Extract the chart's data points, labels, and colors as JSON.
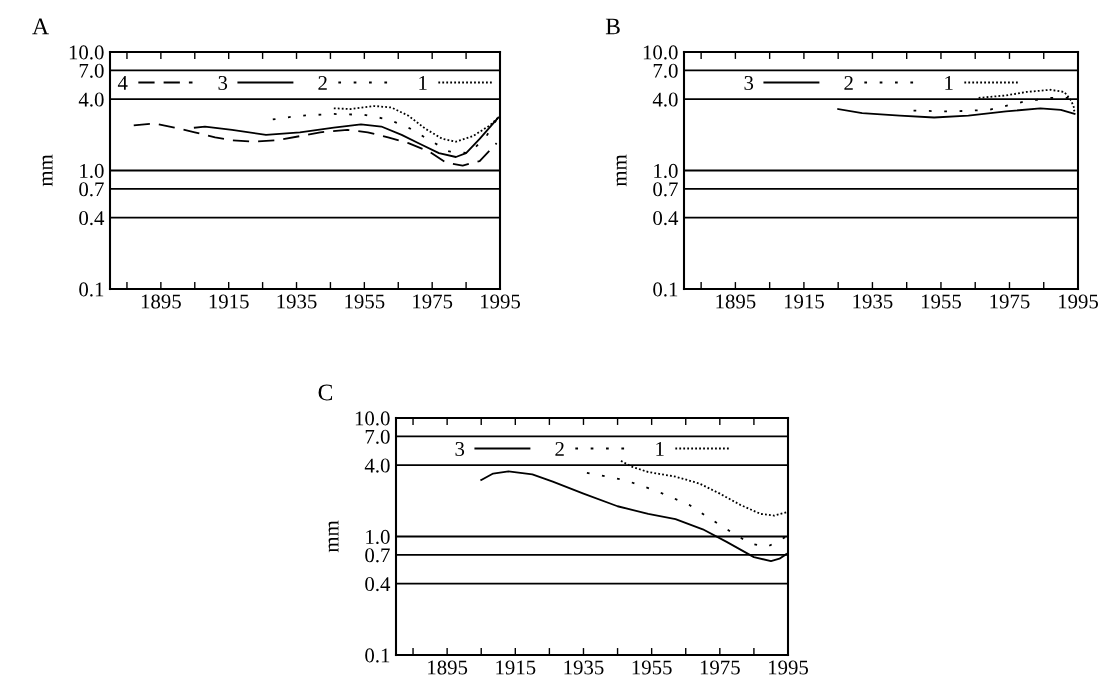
{
  "chart_data": [
    {
      "type": "line",
      "title": "A",
      "ylabel": "mm",
      "log": "y",
      "grid": false,
      "legend": "top",
      "xlim": [
        1880,
        1995
      ],
      "ylim": [
        0.1,
        10
      ],
      "xticks": [
        {
          "value": 1885,
          "label": null
        },
        1895,
        {
          "value": 1905,
          "label": null
        },
        1915,
        {
          "value": 1925,
          "label": null
        },
        1935,
        {
          "value": 1945,
          "label": null
        },
        1955,
        {
          "value": 1965,
          "label": null
        },
        1975,
        {
          "value": 1985,
          "label": null
        },
        1995
      ],
      "yticks": [
        {
          "value": 0.1,
          "label": "0.1"
        },
        {
          "value": 0.4,
          "label": "0.4"
        },
        {
          "value": 0.7,
          "label": "0.7"
        },
        {
          "value": 1,
          "label": "1.0"
        },
        {
          "value": 4,
          "label": "4.0"
        },
        {
          "value": 7,
          "label": "7.0"
        },
        {
          "value": 10,
          "label": "10.0"
        }
      ],
      "ref_lines": [
        {
          "axis": "y",
          "value": 0.4,
          "color": "#000000"
        },
        {
          "axis": "y",
          "value": 0.7,
          "color": "#000000"
        },
        {
          "axis": "y",
          "value": 1,
          "color": "#000000"
        },
        {
          "axis": "y",
          "value": 4,
          "color": "#000000"
        },
        {
          "axis": "y",
          "value": 7,
          "color": "#000000"
        }
      ],
      "series": [
        {
          "name": "4",
          "color": "#000000",
          "line_style": "dashed",
          "x": [
            1887,
            1893,
            1899,
            1905,
            1911,
            1916,
            1922,
            1929,
            1936,
            1942,
            1950,
            1956,
            1962,
            1968,
            1974,
            1979,
            1984,
            1989,
            1994
          ],
          "values": [
            2.4,
            2.5,
            2.3,
            2.1,
            1.9,
            1.8,
            1.75,
            1.8,
            1.95,
            2.1,
            2.2,
            2.1,
            1.9,
            1.7,
            1.45,
            1.17,
            1.1,
            1.2,
            1.7
          ]
        },
        {
          "name": "3",
          "color": "#000000",
          "line_style": "solid",
          "x": [
            1905,
            1908,
            1916,
            1926,
            1936,
            1946,
            1954,
            1960,
            1966,
            1971,
            1977,
            1982,
            1985,
            1989,
            1994.5
          ],
          "values": [
            2.3,
            2.35,
            2.2,
            2.0,
            2.1,
            2.3,
            2.45,
            2.35,
            2.0,
            1.7,
            1.4,
            1.3,
            1.4,
            1.85,
            2.8
          ]
        },
        {
          "name": "2",
          "color": "#000000",
          "line_style": "dotted",
          "x": [
            1928,
            1936,
            1946,
            1955,
            1962,
            1968,
            1975,
            1980,
            1986,
            1991,
            1994
          ],
          "values": [
            2.7,
            2.9,
            3.0,
            2.95,
            2.7,
            2.3,
            1.75,
            1.45,
            1.4,
            1.95,
            2.7
          ]
        },
        {
          "name": "1",
          "color": "#000000",
          "line_style": "dotted",
          "x": [
            1946,
            1951,
            1958,
            1963,
            1968,
            1973,
            1978,
            1982,
            1987,
            1992,
            1994.5
          ],
          "values": [
            3.35,
            3.3,
            3.5,
            3.4,
            2.9,
            2.25,
            1.85,
            1.75,
            1.95,
            2.4,
            2.8
          ]
        }
      ]
    },
    {
      "type": "line",
      "title": "B",
      "ylabel": "mm",
      "log": "y",
      "grid": false,
      "legend": "top",
      "xlim": [
        1880,
        1995
      ],
      "ylim": [
        0.1,
        10
      ],
      "xticks": [
        {
          "value": 1885,
          "label": null
        },
        1895,
        {
          "value": 1905,
          "label": null
        },
        1915,
        {
          "value": 1925,
          "label": null
        },
        1935,
        {
          "value": 1945,
          "label": null
        },
        1955,
        {
          "value": 1965,
          "label": null
        },
        1975,
        {
          "value": 1985,
          "label": null
        },
        1995
      ],
      "yticks": [
        {
          "value": 0.1,
          "label": "0.1"
        },
        {
          "value": 0.4,
          "label": "0.4"
        },
        {
          "value": 0.7,
          "label": "0.7"
        },
        {
          "value": 1,
          "label": "1.0"
        },
        {
          "value": 4,
          "label": "4.0"
        },
        {
          "value": 7,
          "label": "7.0"
        },
        {
          "value": 10,
          "label": "10.0"
        }
      ],
      "ref_lines": [
        {
          "axis": "y",
          "value": 0.4,
          "color": "#000000"
        },
        {
          "axis": "y",
          "value": 0.7,
          "color": "#000000"
        },
        {
          "axis": "y",
          "value": 1,
          "color": "#000000"
        },
        {
          "axis": "y",
          "value": 4,
          "color": "#000000"
        },
        {
          "axis": "y",
          "value": 7,
          "color": "#000000"
        }
      ],
      "series": [
        {
          "name": "3",
          "color": "#000000",
          "line_style": "solid",
          "x": [
            1925,
            1932,
            1943,
            1953,
            1963,
            1974,
            1984,
            1990,
            1994
          ],
          "values": [
            3.3,
            3.05,
            2.9,
            2.8,
            2.9,
            3.15,
            3.35,
            3.25,
            3.0
          ]
        },
        {
          "name": "2",
          "color": "#000000",
          "line_style": "dotted",
          "x": [
            1947,
            1958,
            1969,
            1979,
            1987,
            1992,
            1994
          ],
          "values": [
            3.2,
            3.15,
            3.25,
            3.8,
            4.1,
            4.1,
            3.15
          ]
        },
        {
          "name": "1",
          "color": "#000000",
          "line_style": "dotted",
          "x": [
            1966,
            1974,
            1980,
            1987,
            1991,
            1993,
            1994
          ],
          "values": [
            4.1,
            4.3,
            4.6,
            4.8,
            4.6,
            3.9,
            3.3
          ]
        }
      ]
    },
    {
      "type": "line",
      "title": "C",
      "ylabel": "mm",
      "log": "y",
      "grid": false,
      "legend": "top",
      "xlim": [
        1880,
        1995
      ],
      "ylim": [
        0.1,
        10
      ],
      "xticks": [
        {
          "value": 1885,
          "label": null
        },
        1895,
        {
          "value": 1905,
          "label": null
        },
        1915,
        {
          "value": 1925,
          "label": null
        },
        1935,
        {
          "value": 1945,
          "label": null
        },
        1955,
        {
          "value": 1965,
          "label": null
        },
        1975,
        {
          "value": 1985,
          "label": null
        },
        1995
      ],
      "yticks": [
        {
          "value": 0.1,
          "label": "0.1"
        },
        {
          "value": 0.4,
          "label": "0.4"
        },
        {
          "value": 0.7,
          "label": "0.7"
        },
        {
          "value": 1,
          "label": "1.0"
        },
        {
          "value": 4,
          "label": "4.0"
        },
        {
          "value": 7,
          "label": "7.0"
        },
        {
          "value": 10,
          "label": "10.0"
        }
      ],
      "ref_lines": [
        {
          "axis": "y",
          "value": 0.4,
          "color": "#000000"
        },
        {
          "axis": "y",
          "value": 0.7,
          "color": "#000000"
        },
        {
          "axis": "y",
          "value": 1,
          "color": "#000000"
        },
        {
          "axis": "y",
          "value": 4,
          "color": "#000000"
        },
        {
          "axis": "y",
          "value": 7,
          "color": "#000000"
        }
      ],
      "series": [
        {
          "name": "3",
          "color": "#000000",
          "line_style": "solid",
          "x": [
            1905,
            1908.5,
            1913,
            1920,
            1926,
            1935,
            1945,
            1954,
            1962,
            1970,
            1977,
            1985,
            1990,
            1992.5,
            1994.5
          ],
          "values": [
            3.0,
            3.4,
            3.55,
            3.35,
            2.9,
            2.3,
            1.8,
            1.55,
            1.4,
            1.15,
            0.9,
            0.67,
            0.62,
            0.65,
            0.71
          ]
        },
        {
          "name": "2",
          "color": "#000000",
          "line_style": "dotted",
          "x": [
            1936,
            1947,
            1956,
            1966,
            1975,
            1984,
            1989,
            1994.5
          ],
          "values": [
            3.45,
            3.0,
            2.45,
            1.85,
            1.25,
            0.87,
            0.82,
            1.0
          ]
        },
        {
          "name": "1",
          "color": "#000000",
          "line_style": "dotted",
          "x": [
            1946,
            1949,
            1954,
            1962,
            1969,
            1975,
            1981,
            1987,
            1991,
            1994.5
          ],
          "values": [
            4.35,
            3.9,
            3.5,
            3.2,
            2.8,
            2.3,
            1.85,
            1.55,
            1.5,
            1.6
          ]
        }
      ]
    }
  ]
}
